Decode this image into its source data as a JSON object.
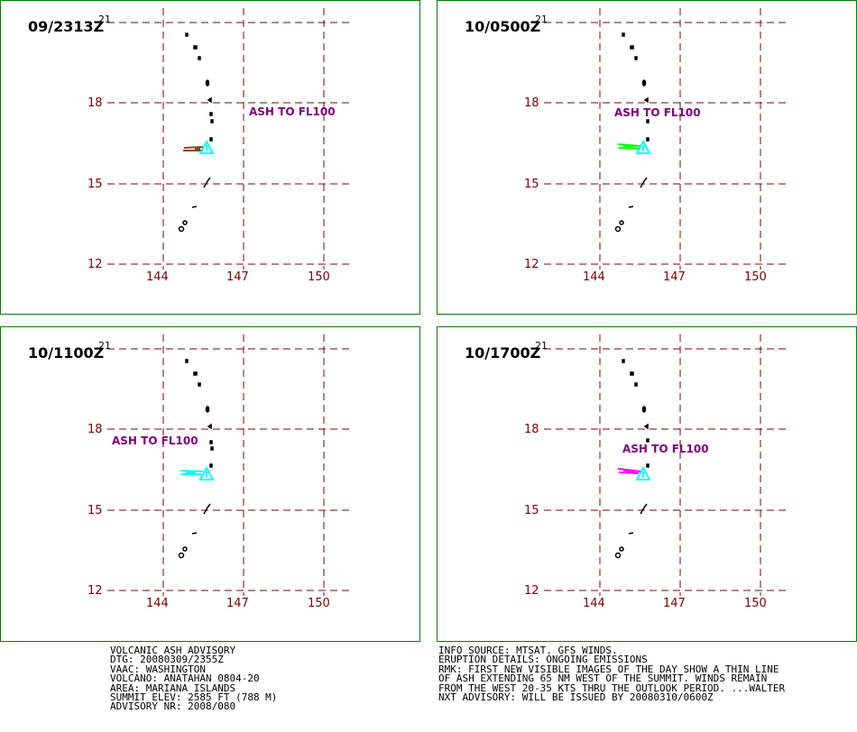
{
  "panels": [
    {
      "time": "09/2313Z",
      "ash_label": "ASH TO FL100",
      "ash_color": "#8B4513"
    },
    {
      "time": "10/0500Z",
      "ash_label": "ASH TO FL100",
      "ash_color": "#00FF00"
    },
    {
      "time": "10/1100Z",
      "ash_label": "ASH TO FL100",
      "ash_color": "#00FFFF"
    },
    {
      "time": "10/1700Z",
      "ash_label": "ASH TO FL100",
      "ash_color": "#FF00FF"
    }
  ],
  "axes": {
    "lat_labels": [
      "21",
      "18",
      "15",
      "12"
    ],
    "lon_labels": [
      "144",
      "147",
      "150"
    ]
  },
  "colors": {
    "panel_border": "#008000",
    "grid": "#800000",
    "axis_labels": "#800000",
    "ash_text": "#800080",
    "volcano_marker": "#00FFFF",
    "islands": "#000000"
  },
  "advisory_left": [
    "VOLCANIC ASH ADVISORY",
    "DTG: 20080309/2355Z",
    "VAAC: WASHINGTON",
    "VOLCANO: ANATAHAN 0804-20",
    "AREA: MARIANA ISLANDS",
    "SUMMIT ELEV: 2585 FT (788 M)",
    "ADVISORY NR: 2008/080"
  ],
  "advisory_right": [
    "INFO SOURCE: MTSAT. GFS WINDS.",
    "ERUPTION DETAILS: ONGOING EMISSIONS",
    "RMK: FIRST NEW VISIBLE IMAGES OF THE DAY SHOW A THIN LINE",
    "OF ASH EXTENDING 65 NM WEST OF THE SUMMIT. WINDS REMAIN",
    "FROM THE WEST 20-35 KTS THRU THE OUTLOOK PERIOD. ...WALTER",
    "NXT ADVISORY: WILL BE ISSUED BY 20080310/0600Z"
  ]
}
